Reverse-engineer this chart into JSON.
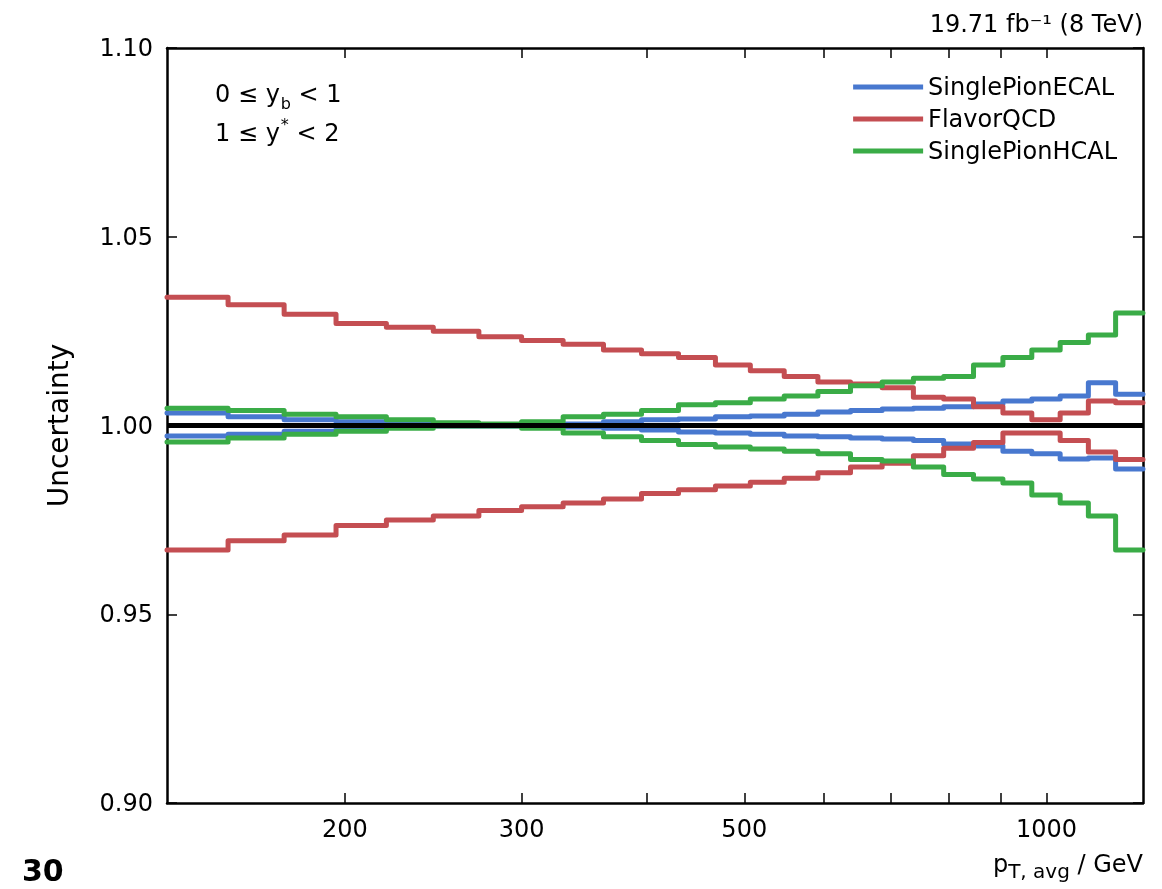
{
  "chart_data": {
    "type": "step",
    "title": "19.71 fb⁻¹ (8 TeV)",
    "xlabel": "p$_{T, avg}$ / GeV",
    "ylabel": "Uncertainty",
    "annotations": [
      "0 ≤ y$_{b}$ < 1",
      "1 ≤ y$^{*}$ < 2",
      "30"
    ],
    "x": [
      133,
      153,
      174,
      196,
      220,
      245,
      272,
      300,
      330,
      362,
      395,
      430,
      468,
      507,
      548,
      592,
      638,
      686,
      737,
      790,
      846,
      905,
      967,
      1032,
      1101,
      1172,
      1248
    ],
    "series": [
      {
        "name": "SinglePionECAL",
        "color": "#4878cf",
        "values": [
          1.0033,
          1.0023,
          1.0015,
          1.001,
          1.0004,
          1.0001,
          1.0001,
          1.0001,
          1.0004,
          1.001,
          1.0015,
          1.0017,
          1.0023,
          1.0025,
          1.003,
          1.0036,
          1.004,
          1.0044,
          1.0046,
          1.005,
          1.0057,
          1.0065,
          1.007,
          1.0078,
          1.0113,
          1.0083,
          1.0083
        ]
      },
      {
        "color": "#4878cf",
        "values": [
          0.9972,
          0.9977,
          0.9985,
          0.999,
          0.9999,
          0.9999,
          0.9999,
          0.9999,
          0.9996,
          0.9993,
          0.9988,
          0.9983,
          0.998,
          0.9977,
          0.9972,
          0.997,
          0.9967,
          0.9964,
          0.996,
          0.9951,
          0.9946,
          0.9932,
          0.9925,
          0.9911,
          0.9914,
          0.9885,
          0.9885
        ]
      },
      {
        "name": "FlavorQCD",
        "color": "#c44e52",
        "values": [
          1.034,
          1.032,
          1.0295,
          1.027,
          1.026,
          1.025,
          1.0235,
          1.0225,
          1.0215,
          1.02,
          1.019,
          1.018,
          1.016,
          1.0145,
          1.013,
          1.0115,
          1.011,
          1.01,
          1.0075,
          1.007,
          1.005,
          1.0033,
          1.0015,
          1.0033,
          1.0065,
          1.006,
          1.006
        ]
      },
      {
        "color": "#c44e52",
        "values": [
          0.967,
          0.9695,
          0.971,
          0.9735,
          0.975,
          0.976,
          0.9775,
          0.9785,
          0.9795,
          0.9805,
          0.982,
          0.983,
          0.984,
          0.985,
          0.986,
          0.9875,
          0.989,
          0.99,
          0.992,
          0.994,
          0.9955,
          0.998,
          0.998,
          0.996,
          0.993,
          0.991,
          0.991
        ]
      },
      {
        "name": "SinglePionHCAL",
        "color": "#3aac47",
        "values": [
          1.0046,
          1.004,
          1.003,
          1.0023,
          1.0015,
          1.0007,
          1.0004,
          1.001,
          1.0023,
          1.003,
          1.004,
          1.0055,
          1.006,
          1.007,
          1.0078,
          1.009,
          1.0105,
          1.0115,
          1.0125,
          1.013,
          1.016,
          1.018,
          1.02,
          1.022,
          1.024,
          1.0298,
          1.0298
        ]
      },
      {
        "color": "#3aac47",
        "values": [
          0.9956,
          0.9967,
          0.9977,
          0.9985,
          0.9993,
          0.9999,
          0.9999,
          0.9993,
          0.998,
          0.997,
          0.996,
          0.995,
          0.9943,
          0.9938,
          0.9932,
          0.9925,
          0.991,
          0.9906,
          0.989,
          0.987,
          0.9858,
          0.9848,
          0.9816,
          0.9795,
          0.976,
          0.967,
          0.967
        ]
      }
    ],
    "xlim": [
      133,
      1248
    ],
    "xticks": [
      200,
      300,
      {
        "value": 400,
        "label": null
      },
      500,
      {
        "value": 600,
        "label": null
      },
      {
        "value": 700,
        "label": null
      },
      {
        "value": 800,
        "label": null
      },
      {
        "value": 900,
        "label": null
      },
      1000
    ],
    "ylim": [
      0.9,
      1.1
    ],
    "yticks": [
      {
        "value": 0.9,
        "label": "0.90"
      },
      {
        "value": 0.95,
        "label": "0.95"
      },
      {
        "value": 1.0,
        "label": "1.00"
      },
      {
        "value": 1.05,
        "label": "1.05"
      },
      {
        "value": 1.1,
        "label": "1.10"
      }
    ],
    "log": "x",
    "legend": "top right",
    "marker": "none",
    "ref_lines": [
      {
        "axis": "y",
        "value": 1.0,
        "color": "#000000"
      }
    ]
  }
}
